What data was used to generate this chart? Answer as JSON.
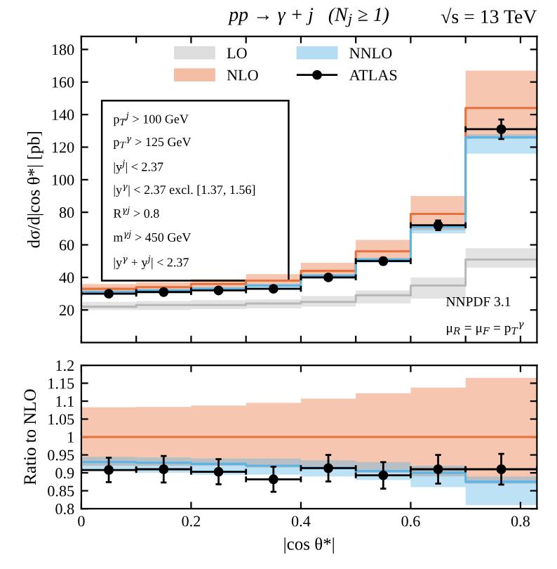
{
  "chart_data": [
    {
      "type": "step",
      "title": "pp → γ + j   (N$_{j}$ ≥ 1)",
      "subtitle": "√s = 13 TeV",
      "ylabel": "dσ/d|cos θ*| [pb]",
      "x": [
        0,
        0.1,
        0.2,
        0.3,
        0.4,
        0.5,
        0.6,
        0.7,
        0.83
      ],
      "xlim": [
        0,
        0.83
      ],
      "ylim": [
        0,
        188
      ],
      "yticks": [
        20,
        40,
        60,
        80,
        100,
        120,
        140,
        160,
        180
      ],
      "tick_labels": "y",
      "legend": "top",
      "grid": false,
      "annotations": [
        "p$_{T}$$^{j}$ > 100 GeV",
        "p$_{T}$$^{γ}$ > 125 GeV",
        "|y$^{j}$| < 2.37",
        "|y$^{γ}$| < 2.37 excl. [1.37, 1.56]",
        "R$^{γj}$ > 0.8",
        "m$^{γj}$ > 450 GeV",
        "|y$^{γ}$ + y$^{j}$| < 2.37",
        "NNPDF 3.1",
        "μ$_{R}$ = μ$_{F}$ = p$_{T}$$^{γ}$"
      ],
      "series": [
        {
          "name": "LO",
          "color": "#b8b8b8",
          "values": [
            22,
            23,
            23,
            24,
            25,
            29,
            35,
            51,
            51
          ],
          "lower": [
            20,
            20,
            20.5,
            21,
            22,
            24,
            27,
            46,
            46
          ],
          "upper": [
            25,
            25.5,
            26,
            26.5,
            28.5,
            32,
            40,
            58,
            58
          ]
        },
        {
          "name": "NLO",
          "color": "#e8703a",
          "values": [
            33,
            34,
            36,
            38,
            44,
            56,
            79,
            144,
            144
          ],
          "lower": [
            31,
            32,
            33,
            35,
            40,
            50,
            69,
            125,
            125
          ],
          "upper": [
            36,
            37,
            39,
            42,
            49,
            63,
            90,
            167,
            167
          ]
        },
        {
          "name": "NNLO",
          "color": "#5ab4e5",
          "values": [
            31,
            32,
            33,
            35,
            41,
            51,
            71,
            126,
            126
          ],
          "lower": [
            30,
            31,
            32,
            33,
            39,
            49,
            67,
            116,
            116
          ],
          "upper": [
            32,
            33,
            34,
            36,
            42,
            52,
            72,
            128,
            128
          ]
        },
        {
          "name": "ATLAS",
          "type": "scatter",
          "color": "#000000",
          "marker": "circle",
          "x": [
            0.05,
            0.15,
            0.25,
            0.35,
            0.45,
            0.55,
            0.65,
            0.765
          ],
          "values": [
            30,
            31,
            32,
            33,
            40,
            50,
            72,
            131
          ],
          "errors": [
            1,
            1,
            1,
            1,
            1,
            2,
            3,
            6
          ],
          "xerrors": [
            0.05,
            0.05,
            0.05,
            0.05,
            0.05,
            0.05,
            0.05,
            0.065
          ]
        }
      ]
    },
    {
      "type": "step",
      "xlabel": "|cos θ*|",
      "ylabel": "Ratio to NLO",
      "x": [
        0,
        0.1,
        0.2,
        0.3,
        0.4,
        0.5,
        0.6,
        0.7,
        0.83
      ],
      "xlim": [
        0,
        0.83
      ],
      "xticks": [
        0,
        0.2,
        0.4,
        0.6,
        0.8
      ],
      "ylim": [
        0.8,
        1.2
      ],
      "yticks": [
        0.8,
        0.85,
        0.9,
        0.95,
        1,
        1.05,
        1.1,
        1.15,
        1.2
      ],
      "grid": false,
      "series": [
        {
          "color": "#e8703a",
          "values": [
            1,
            1,
            1,
            1,
            1,
            1,
            1,
            1,
            1
          ],
          "lower": [
            0.92,
            0.92,
            0.92,
            0.915,
            0.91,
            0.9,
            0.89,
            0.87,
            0.87
          ],
          "upper": [
            1.083,
            1.084,
            1.088,
            1.095,
            1.107,
            1.122,
            1.138,
            1.165,
            1.165
          ]
        },
        {
          "color": "#5ab4e5",
          "values": [
            0.93,
            0.928,
            0.925,
            0.92,
            0.915,
            0.905,
            0.9,
            0.875,
            0.875
          ],
          "lower": [
            0.905,
            0.9,
            0.895,
            0.895,
            0.89,
            0.88,
            0.86,
            0.81,
            0.81
          ],
          "upper": [
            0.945,
            0.943,
            0.94,
            0.94,
            0.935,
            0.93,
            0.92,
            0.89,
            0.89
          ]
        },
        {
          "type": "scatter",
          "color": "#000000",
          "marker": "circle",
          "x": [
            0.05,
            0.15,
            0.25,
            0.35,
            0.45,
            0.55,
            0.65,
            0.765
          ],
          "values": [
            0.908,
            0.91,
            0.903,
            0.882,
            0.913,
            0.893,
            0.91,
            0.91
          ],
          "errors": [
            0.034,
            0.037,
            0.035,
            0.035,
            0.037,
            0.037,
            0.04,
            0.043
          ],
          "xerrors": [
            0.05,
            0.05,
            0.05,
            0.05,
            0.05,
            0.05,
            0.05,
            0.065
          ]
        }
      ]
    }
  ]
}
